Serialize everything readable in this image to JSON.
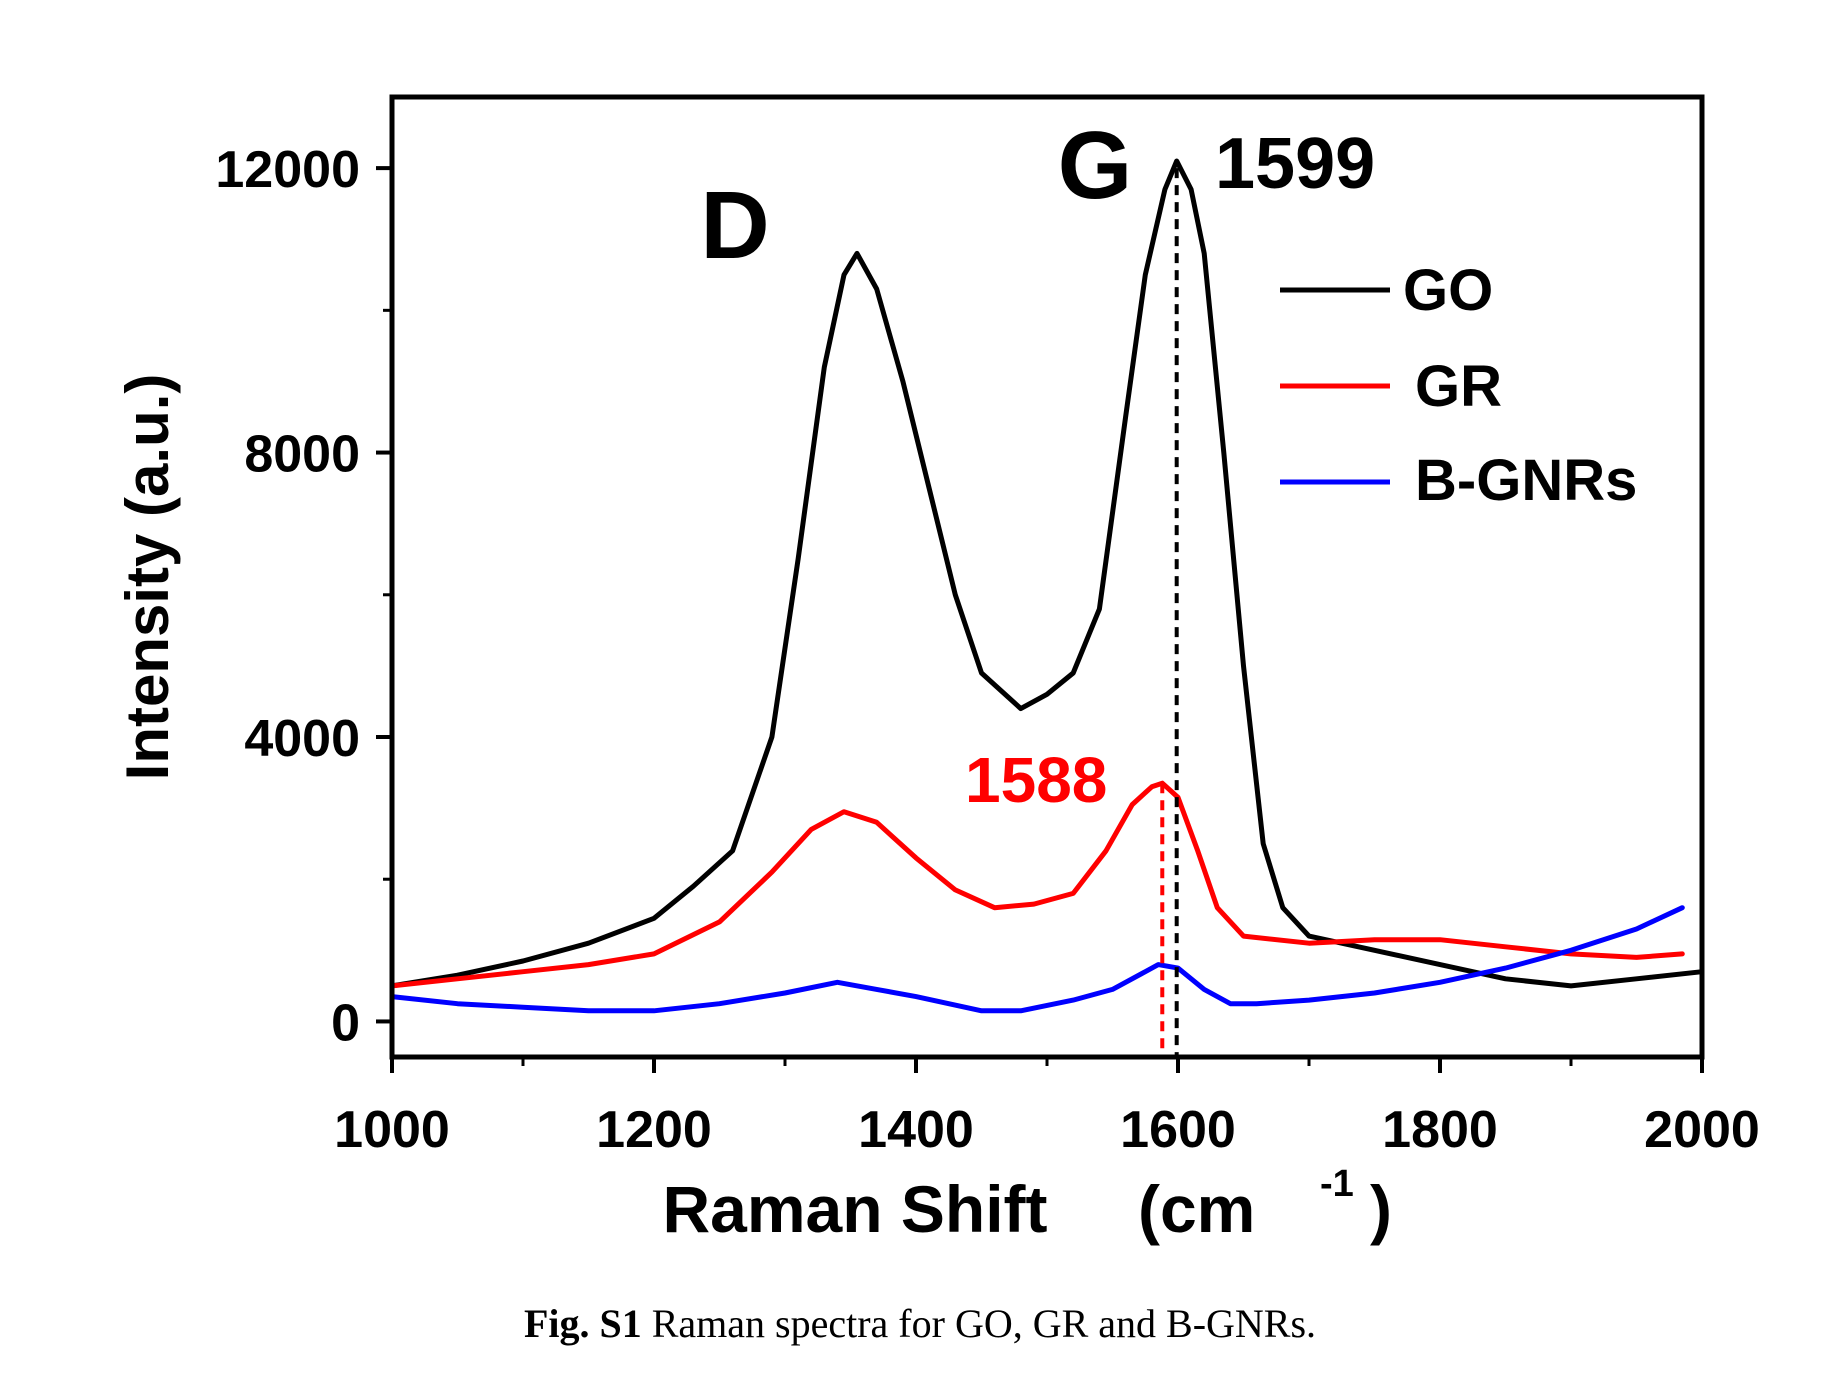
{
  "chart_data": {
    "type": "line",
    "xlabel": "Raman Shift",
    "xunit": "(cm",
    "xunit_sup": "-1",
    "xunit_close": ")",
    "ylabel": "Intensity (a.u.)",
    "xlim": [
      1000,
      2000
    ],
    "ylim": [
      -500,
      13000
    ],
    "x_ticks": [
      1000,
      1200,
      1400,
      1600,
      1800,
      2000
    ],
    "y_ticks": [
      0,
      4000,
      8000,
      12000
    ],
    "x_tick_labels": [
      "1000",
      "1200",
      "1400",
      "1600",
      "1800",
      "2000"
    ],
    "y_tick_labels": [
      "0",
      "4000",
      "8000",
      "12000"
    ],
    "grid": false,
    "legend_position": "top-right",
    "series": [
      {
        "name": "GO",
        "color": "#000000",
        "points": [
          [
            1000,
            500
          ],
          [
            1050,
            650
          ],
          [
            1100,
            850
          ],
          [
            1150,
            1100
          ],
          [
            1200,
            1450
          ],
          [
            1230,
            1900
          ],
          [
            1260,
            2400
          ],
          [
            1290,
            4000
          ],
          [
            1310,
            6500
          ],
          [
            1330,
            9200
          ],
          [
            1345,
            10500
          ],
          [
            1355,
            10800
          ],
          [
            1370,
            10300
          ],
          [
            1390,
            9000
          ],
          [
            1410,
            7500
          ],
          [
            1430,
            6000
          ],
          [
            1450,
            4900
          ],
          [
            1480,
            4400
          ],
          [
            1500,
            4600
          ],
          [
            1520,
            4900
          ],
          [
            1540,
            5800
          ],
          [
            1560,
            8500
          ],
          [
            1575,
            10500
          ],
          [
            1590,
            11700
          ],
          [
            1599,
            12100
          ],
          [
            1610,
            11700
          ],
          [
            1620,
            10800
          ],
          [
            1635,
            8000
          ],
          [
            1650,
            5000
          ],
          [
            1665,
            2500
          ],
          [
            1680,
            1600
          ],
          [
            1700,
            1200
          ],
          [
            1750,
            1000
          ],
          [
            1800,
            800
          ],
          [
            1850,
            600
          ],
          [
            1900,
            500
          ],
          [
            1950,
            600
          ],
          [
            2000,
            700
          ]
        ]
      },
      {
        "name": "GR",
        "color": "#ff0000",
        "points": [
          [
            1000,
            500
          ],
          [
            1050,
            600
          ],
          [
            1100,
            700
          ],
          [
            1150,
            800
          ],
          [
            1200,
            950
          ],
          [
            1250,
            1400
          ],
          [
            1290,
            2100
          ],
          [
            1320,
            2700
          ],
          [
            1345,
            2950
          ],
          [
            1370,
            2800
          ],
          [
            1400,
            2300
          ],
          [
            1430,
            1850
          ],
          [
            1460,
            1600
          ],
          [
            1490,
            1650
          ],
          [
            1520,
            1800
          ],
          [
            1545,
            2400
          ],
          [
            1565,
            3050
          ],
          [
            1580,
            3300
          ],
          [
            1588,
            3350
          ],
          [
            1600,
            3150
          ],
          [
            1615,
            2400
          ],
          [
            1630,
            1600
          ],
          [
            1650,
            1200
          ],
          [
            1700,
            1100
          ],
          [
            1750,
            1150
          ],
          [
            1800,
            1150
          ],
          [
            1850,
            1050
          ],
          [
            1900,
            950
          ],
          [
            1950,
            900
          ],
          [
            1985,
            950
          ]
        ]
      },
      {
        "name": "B-GNRs",
        "color": "#0000ff",
        "points": [
          [
            1000,
            350
          ],
          [
            1050,
            250
          ],
          [
            1100,
            200
          ],
          [
            1150,
            150
          ],
          [
            1200,
            150
          ],
          [
            1250,
            250
          ],
          [
            1300,
            400
          ],
          [
            1340,
            550
          ],
          [
            1370,
            450
          ],
          [
            1400,
            350
          ],
          [
            1450,
            150
          ],
          [
            1480,
            150
          ],
          [
            1520,
            300
          ],
          [
            1550,
            450
          ],
          [
            1575,
            700
          ],
          [
            1585,
            800
          ],
          [
            1600,
            750
          ],
          [
            1620,
            450
          ],
          [
            1640,
            250
          ],
          [
            1660,
            250
          ],
          [
            1700,
            300
          ],
          [
            1750,
            400
          ],
          [
            1800,
            550
          ],
          [
            1850,
            750
          ],
          [
            1900,
            1000
          ],
          [
            1950,
            1300
          ],
          [
            1985,
            1600
          ]
        ]
      }
    ],
    "annotations": [
      {
        "text": "D",
        "color": "#000000"
      },
      {
        "text": "G",
        "color": "#000000"
      },
      {
        "text": "1599",
        "color": "#000000",
        "x": 1599
      },
      {
        "text": "1588",
        "color": "#ff0000",
        "x": 1588
      }
    ]
  },
  "caption": {
    "label": "Fig. S1",
    "text": " Raman spectra for GO, GR and B-GNRs."
  }
}
